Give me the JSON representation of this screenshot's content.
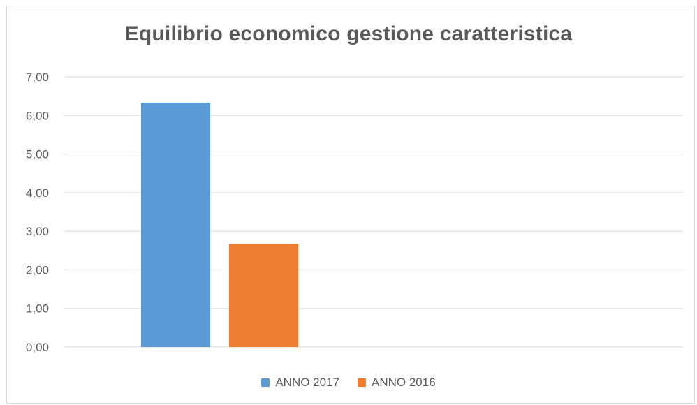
{
  "chart_data": {
    "type": "bar",
    "title": "Equilibrio economico gestione caratteristica",
    "xlabel": "",
    "ylabel": "",
    "ylim": [
      0,
      7
    ],
    "y_ticks": [
      "0,00",
      "1,00",
      "2,00",
      "3,00",
      "4,00",
      "5,00",
      "6,00",
      "7,00"
    ],
    "grid": true,
    "legend_position": "bottom",
    "categories": [
      ""
    ],
    "series": [
      {
        "name": "ANNO 2017",
        "values": [
          6.33
        ],
        "color": "#5b9bd5"
      },
      {
        "name": "ANNO 2016",
        "values": [
          2.67
        ],
        "color": "#ed7d31"
      }
    ]
  }
}
